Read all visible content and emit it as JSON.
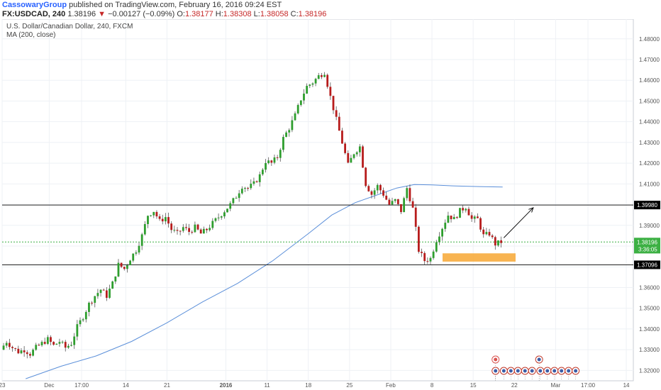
{
  "header": {
    "author": "CassowaryGroup",
    "published": "published on TradingView.com, February 16, 2016 09:24 EST",
    "symbol": "FX:USDCAD, 240",
    "last": "1.38196",
    "arrow": "▼",
    "change": "−0.00127 (−0.09%)",
    "o_label": "O:",
    "o_value": "1.38177",
    "h_label": "H:",
    "h_value": "1.38308",
    "l_label": "L:",
    "l_value": "1.38058",
    "c_label": "C:",
    "c_value": "1.38196"
  },
  "legend": {
    "title": "U.S. Dollar/Canadian Dollar, 240, FXCM",
    "indicator": "MA (200, close)"
  },
  "colors": {
    "up": "#2e9e2e",
    "down": "#b71c1c",
    "ma": "#5b8fd9",
    "zone": "#f7a733",
    "current_line": "#3cb043",
    "level_line": "#222222",
    "grid": "#eef1f5"
  },
  "chart_data": {
    "type": "candlestick",
    "ylim": [
      1.315,
      1.4895
    ],
    "y_ticks": [
      1.32,
      1.33,
      1.34,
      1.35,
      1.36,
      1.37,
      1.38,
      1.39,
      1.4,
      1.41,
      1.42,
      1.43,
      1.44,
      1.45,
      1.46,
      1.47,
      1.48
    ],
    "y_tick_labels": [
      "1.32000",
      "1.33000",
      "1.34000",
      "1.35000",
      "1.36000",
      "1.37000",
      "1.38000",
      "1.39000",
      "1.40000",
      "1.41000",
      "1.42000",
      "1.43000",
      "1.44000",
      "1.45000",
      "1.46000",
      "1.47000",
      "1.48000"
    ],
    "x_ticks": [
      {
        "label": "23",
        "day": 0
      },
      {
        "label": "Dec",
        "day": 8
      },
      {
        "label": "17:00",
        "day": 13.5
      },
      {
        "label": "14",
        "day": 21
      },
      {
        "label": "21",
        "day": 28
      },
      {
        "label": "2016",
        "day": 38
      },
      {
        "label": "11",
        "day": 45
      },
      {
        "label": "18",
        "day": 52
      },
      {
        "label": "25",
        "day": 59
      },
      {
        "label": "Feb",
        "day": 66
      },
      {
        "label": "8",
        "day": 73
      },
      {
        "label": "15",
        "day": 80
      },
      {
        "label": "22",
        "day": 87
      },
      {
        "label": "Mar",
        "day": 94
      },
      {
        "label": "17:00",
        "day": 99.5
      },
      {
        "label": "14",
        "day": 106
      }
    ],
    "x_range_days": [
      0,
      107.2
    ],
    "price_path": [
      [
        0,
        1.33
      ],
      [
        1,
        1.334
      ],
      [
        2,
        1.331
      ],
      [
        3,
        1.329
      ],
      [
        4,
        1.33
      ],
      [
        5,
        1.328
      ],
      [
        6,
        1.331
      ],
      [
        7,
        1.333
      ],
      [
        8,
        1.335
      ],
      [
        9,
        1.332
      ],
      [
        10,
        1.334
      ],
      [
        11,
        1.331
      ],
      [
        12,
        1.333
      ],
      [
        13,
        1.341
      ],
      [
        14,
        1.346
      ],
      [
        15,
        1.352
      ],
      [
        16,
        1.356
      ],
      [
        17,
        1.359
      ],
      [
        18,
        1.356
      ],
      [
        19,
        1.362
      ],
      [
        20,
        1.371
      ],
      [
        21,
        1.369
      ],
      [
        22,
        1.374
      ],
      [
        23,
        1.378
      ],
      [
        24,
        1.385
      ],
      [
        25,
        1.395
      ],
      [
        26,
        1.397
      ],
      [
        27,
        1.392
      ],
      [
        28,
        1.394
      ],
      [
        29,
        1.388
      ],
      [
        30,
        1.386
      ],
      [
        31,
        1.389
      ],
      [
        32,
        1.387
      ],
      [
        33,
        1.389
      ],
      [
        34,
        1.386
      ],
      [
        35,
        1.388
      ],
      [
        36,
        1.391
      ],
      [
        37,
        1.394
      ],
      [
        38,
        1.397
      ],
      [
        39,
        1.4
      ],
      [
        40,
        1.404
      ],
      [
        41,
        1.409
      ],
      [
        42,
        1.408
      ],
      [
        43,
        1.41
      ],
      [
        44,
        1.414
      ],
      [
        45,
        1.421
      ],
      [
        46,
        1.42
      ],
      [
        47,
        1.423
      ],
      [
        48,
        1.432
      ],
      [
        49,
        1.437
      ],
      [
        50,
        1.443
      ],
      [
        51,
        1.451
      ],
      [
        52,
        1.457
      ],
      [
        53,
        1.459
      ],
      [
        54,
        1.462
      ],
      [
        55,
        1.464
      ],
      [
        56,
        1.452
      ],
      [
        57,
        1.441
      ],
      [
        58,
        1.43
      ],
      [
        59,
        1.419
      ],
      [
        60,
        1.425
      ],
      [
        61,
        1.428
      ],
      [
        62,
        1.41
      ],
      [
        63,
        1.405
      ],
      [
        64,
        1.409
      ],
      [
        65,
        1.405
      ],
      [
        66,
        1.4
      ],
      [
        67,
        1.402
      ],
      [
        68,
        1.397
      ],
      [
        69,
        1.408
      ],
      [
        70,
        1.398
      ],
      [
        71,
        1.378
      ],
      [
        72,
        1.373
      ],
      [
        73,
        1.374
      ],
      [
        74,
        1.383
      ],
      [
        75,
        1.389
      ],
      [
        76,
        1.395
      ],
      [
        77,
        1.393
      ],
      [
        78,
        1.397
      ],
      [
        79,
        1.399
      ],
      [
        80,
        1.393
      ],
      [
        81,
        1.393
      ],
      [
        82,
        1.385
      ],
      [
        83,
        1.386
      ],
      [
        84,
        1.381
      ],
      [
        85,
        1.382
      ]
    ],
    "candle_count": 170,
    "ma_path": [
      [
        4,
        1.316
      ],
      [
        10,
        1.322
      ],
      [
        16,
        1.327
      ],
      [
        22,
        1.334
      ],
      [
        28,
        1.343
      ],
      [
        34,
        1.353
      ],
      [
        40,
        1.362
      ],
      [
        46,
        1.373
      ],
      [
        52,
        1.386
      ],
      [
        56,
        1.395
      ],
      [
        60,
        1.401
      ],
      [
        64,
        1.405
      ],
      [
        67,
        1.408
      ],
      [
        70,
        1.4097
      ],
      [
        73,
        1.4095
      ],
      [
        77,
        1.409
      ],
      [
        81,
        1.4087
      ],
      [
        85,
        1.4085
      ]
    ],
    "levels": [
      {
        "value": 1.3998,
        "label": "1.39980",
        "style": "line"
      },
      {
        "value": 1.37096,
        "label": "1.37096",
        "style": "line"
      }
    ],
    "current_price": {
      "value": 1.38196,
      "label": "1.38196"
    },
    "countdown": {
      "value": 1.3785,
      "label": "3:36:05"
    },
    "support_zone": {
      "day_start": 74.8,
      "day_end": 87.2,
      "low": 1.3725,
      "high": 1.3765
    },
    "arrow": {
      "from": [
        85.2,
        1.384
      ],
      "to": [
        90.2,
        1.3985
      ]
    }
  }
}
